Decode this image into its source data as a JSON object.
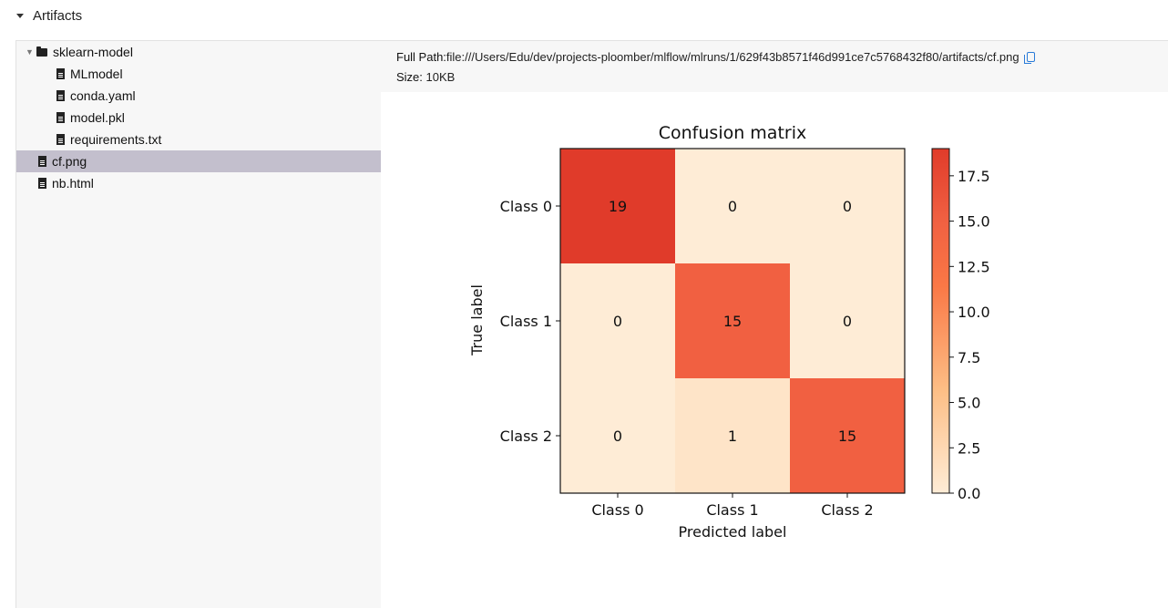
{
  "section": {
    "title": "Artifacts"
  },
  "tree": {
    "items": [
      {
        "label": "sklearn-model",
        "type": "folder",
        "expanded": true,
        "icon": "folder-icon"
      },
      {
        "label": "MLmodel",
        "type": "file",
        "icon": "file-icon"
      },
      {
        "label": "conda.yaml",
        "type": "file",
        "icon": "code-file-icon"
      },
      {
        "label": "model.pkl",
        "type": "file",
        "icon": "file-icon"
      },
      {
        "label": "requirements.txt",
        "type": "file",
        "icon": "code-file-icon"
      },
      {
        "label": "cf.png",
        "type": "file",
        "icon": "image-file-icon",
        "selected": true
      },
      {
        "label": "nb.html",
        "type": "file",
        "icon": "file-icon"
      }
    ]
  },
  "details": {
    "path_label": "Full Path:",
    "path_value": "file:///Users/Edu/dev/projects-ploomber/mlflow/mlruns/1/629f43b8571f46d991ce7c5768432f80/artifacts/cf.png",
    "size_label": "Size:",
    "size_value": "10KB"
  },
  "colors": {
    "selected_row": "#c3bfcd",
    "copy_icon": "#2a7bd8"
  },
  "chart_data": {
    "type": "heatmap",
    "title": "Confusion matrix",
    "xlabel": "Predicted label",
    "ylabel": "True label",
    "x_categories": [
      "Class 0",
      "Class 1",
      "Class 2"
    ],
    "y_categories": [
      "Class 0",
      "Class 1",
      "Class 2"
    ],
    "values": [
      [
        19,
        0,
        0
      ],
      [
        0,
        15,
        0
      ],
      [
        0,
        1,
        15
      ]
    ],
    "colormap": "Oranges-Reds",
    "vmin": 0,
    "vmax": 19,
    "colorbar_ticks": [
      "0.0",
      "2.5",
      "5.0",
      "7.5",
      "10.0",
      "12.5",
      "15.0",
      "17.5"
    ]
  }
}
